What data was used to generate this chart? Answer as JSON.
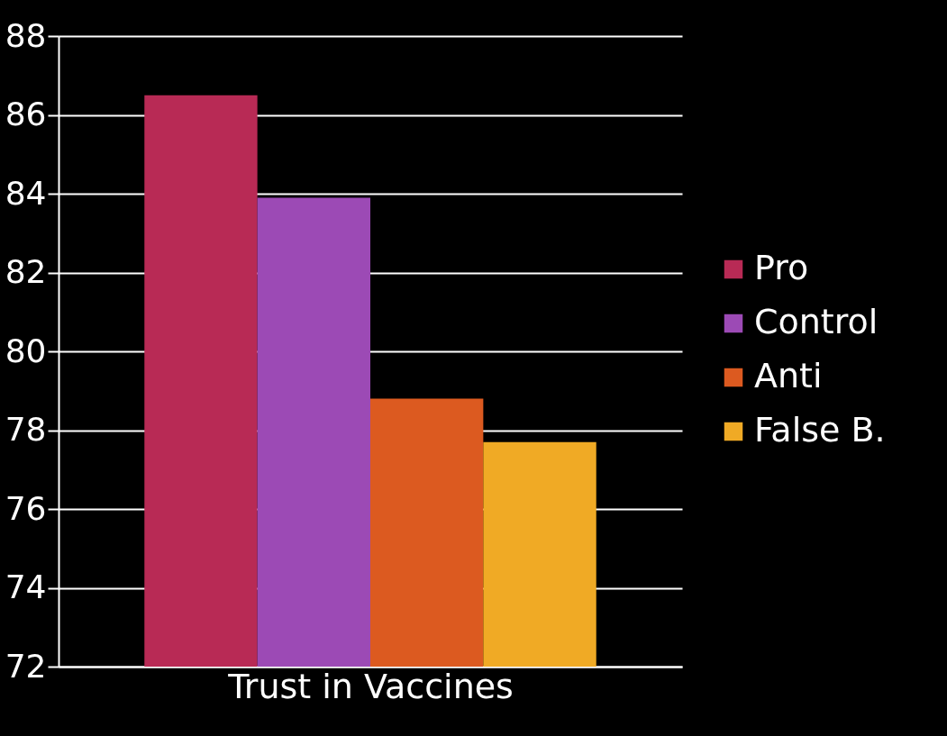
{
  "chart_data": {
    "type": "bar",
    "xlabel": "Trust in Vaccines",
    "categories": [
      null,
      null,
      null,
      null
    ],
    "series": [
      {
        "name": "Pro",
        "color": "#b82a55",
        "values": [
          86.5,
          null,
          null,
          null
        ]
      },
      {
        "name": "Control",
        "color": "#9c4ab5",
        "values": [
          null,
          83.9,
          null,
          null
        ]
      },
      {
        "name": "Anti",
        "color": "#dc5a20",
        "values": [
          null,
          null,
          78.8,
          null
        ]
      },
      {
        "name": "False B.",
        "color": "#f0aa25",
        "values": [
          null,
          null,
          null,
          77.7
        ]
      }
    ],
    "ylim": [
      72,
      88
    ],
    "yticks": [
      72,
      74,
      76,
      78,
      80,
      82,
      84,
      86,
      88
    ],
    "grid": "y",
    "legend": "right"
  }
}
